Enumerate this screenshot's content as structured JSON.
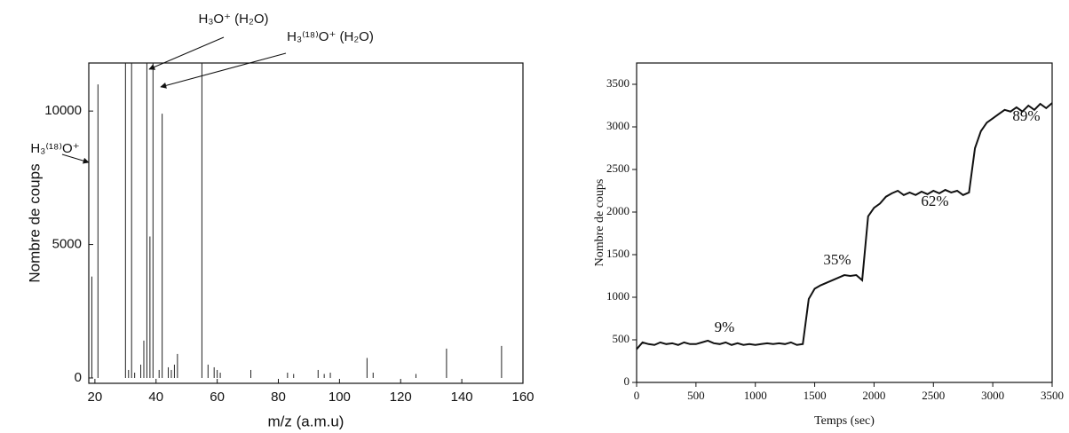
{
  "chart_data": [
    {
      "type": "stem",
      "ylabel": "Nombre de coups",
      "xlabel": "m/z (a.m.u)",
      "color": "#222222",
      "x": [
        19,
        21,
        30,
        31,
        32,
        33,
        35,
        36,
        37,
        38,
        39,
        41,
        42,
        44,
        45,
        46,
        47,
        55,
        57,
        59,
        60,
        61,
        71,
        83,
        85,
        93,
        95,
        97,
        109,
        111,
        125,
        135,
        153
      ],
      "values": [
        3800,
        11000,
        12000,
        300,
        12000,
        200,
        500,
        1400,
        12000,
        5300,
        12000,
        300,
        9900,
        400,
        300,
        500,
        900,
        12000,
        500,
        400,
        300,
        200,
        300,
        200,
        150,
        300,
        150,
        200,
        750,
        200,
        150,
        1100,
        1200
      ],
      "xlim": [
        18,
        160
      ],
      "ylim": [
        -200,
        11800
      ],
      "xticks": [
        20,
        40,
        60,
        80,
        100,
        120,
        140,
        160
      ],
      "yticks": [
        0,
        5000,
        10000
      ],
      "annotations": [
        "H₃⁽¹⁸⁾O⁺",
        "H₃O⁺ (H₂O)",
        "H₃⁽¹⁸⁾O⁺ (H₂O)"
      ]
    },
    {
      "type": "line",
      "ylabel": "Nombre de coups",
      "xlabel": "Temps (sec)",
      "color": "#111111",
      "x": [
        0,
        50,
        100,
        150,
        200,
        250,
        300,
        350,
        400,
        450,
        500,
        550,
        600,
        650,
        700,
        750,
        800,
        850,
        900,
        950,
        1000,
        1050,
        1100,
        1150,
        1200,
        1250,
        1300,
        1350,
        1400,
        1450,
        1500,
        1550,
        1600,
        1650,
        1700,
        1750,
        1800,
        1850,
        1900,
        1950,
        2000,
        2050,
        2100,
        2150,
        2200,
        2250,
        2300,
        2350,
        2400,
        2450,
        2500,
        2550,
        2600,
        2650,
        2700,
        2750,
        2800,
        2850,
        2900,
        2950,
        3000,
        3050,
        3100,
        3150,
        3200,
        3250,
        3300,
        3350,
        3400,
        3450,
        3500
      ],
      "values": [
        390,
        470,
        450,
        440,
        470,
        450,
        460,
        440,
        470,
        450,
        450,
        470,
        490,
        460,
        450,
        470,
        440,
        460,
        440,
        450,
        440,
        450,
        460,
        450,
        460,
        450,
        470,
        440,
        450,
        980,
        1100,
        1140,
        1170,
        1200,
        1230,
        1260,
        1250,
        1260,
        1200,
        1950,
        2050,
        2100,
        2180,
        2220,
        2250,
        2200,
        2230,
        2200,
        2240,
        2210,
        2250,
        2220,
        2260,
        2230,
        2250,
        2200,
        2230,
        2750,
        2950,
        3050,
        3100,
        3150,
        3200,
        3180,
        3230,
        3180,
        3250,
        3200,
        3270,
        3220,
        3280
      ],
      "xlim": [
        0,
        3500
      ],
      "ylim": [
        0,
        3750
      ],
      "xticks": [
        0,
        500,
        1000,
        1500,
        2000,
        2500,
        3000,
        3500
      ],
      "yticks": [
        0,
        500,
        1000,
        1500,
        2000,
        2500,
        3000,
        3500
      ],
      "annotations": [
        "9%",
        "35%",
        "62%",
        "89%"
      ]
    }
  ]
}
